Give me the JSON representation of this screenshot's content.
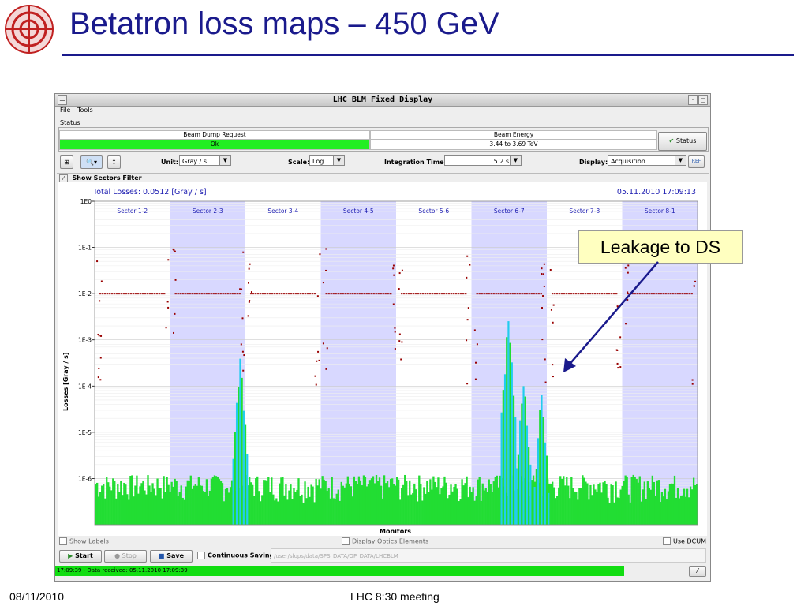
{
  "slide": {
    "title": "Betatron loss maps – 450 GeV",
    "footer_date": "08/11/2010",
    "footer_meeting": "LHC 8:30 meeting",
    "callout": "Leakage to DS"
  },
  "window": {
    "title": "LHC BLM Fixed Display",
    "menu": [
      "File",
      "Tools"
    ],
    "status_label": "Status",
    "status_cells": [
      {
        "header": "Beam Dump Request",
        "value": "Ok"
      },
      {
        "header": "Beam Energy",
        "value": "3.44 to 3.69 TeV"
      }
    ],
    "status_button": "Status",
    "controls": {
      "unit_label": "Unit:",
      "unit_value": "Gray / s",
      "scale_label": "Scale:",
      "scale_value": "Log",
      "integration_label": "Integration Time:",
      "integration_value": "5.2 s",
      "display_label": "Display:",
      "display_value": "Acquisition",
      "ref_button": "REF"
    },
    "show_sectors_filter": "Show Sectors Filter",
    "total_losses": "Total Losses: 0.0512 [Gray / s]",
    "timestamp": "05.11.2010 17:09:13",
    "x_title": "Monitors",
    "show_labels": "Show Labels",
    "display_optics": "Display Optics Elements",
    "use_dcum": "Use DCUM",
    "buttons": {
      "start": "Start",
      "stop": "Stop",
      "save": "Save",
      "continuous": "Continuous Saving"
    },
    "path": "/user/slops/data/SPS_DATA/OP_DATA/LHCBLM",
    "status_message": "17:09:39 - Data received: 05.11.2010 17:09:39"
  },
  "chart_data": {
    "type": "bar",
    "ylabel": "Losses [Gray / s]",
    "xlabel": "Monitors",
    "yscale": "log",
    "ylim": [
      1e-07,
      1
    ],
    "yticks": [
      "1E0",
      "1E-1",
      "1E-2",
      "1E-3",
      "1E-4",
      "1E-5",
      "1E-6"
    ],
    "sectors": [
      "Sector 1-2",
      "Sector 2-3",
      "Sector 3-4",
      "Sector 4-5",
      "Sector 5-6",
      "Sector 6-7",
      "Sector 7-8",
      "Sector 8-1"
    ],
    "threshold_level": 0.01,
    "loss_peaks": [
      {
        "monitor_fraction": 0.24,
        "value": 0.0006
      },
      {
        "monitor_fraction": 0.685,
        "value": 0.004
      },
      {
        "monitor_fraction": 0.71,
        "value": 0.0002
      },
      {
        "monitor_fraction": 0.74,
        "value": 0.0001
      }
    ],
    "baseline": 5e-07,
    "colors": {
      "losses": "#22dd33",
      "peaks": "#22ccee",
      "thresholds": "#990000",
      "sector_shade": "#d8d8ff"
    }
  }
}
